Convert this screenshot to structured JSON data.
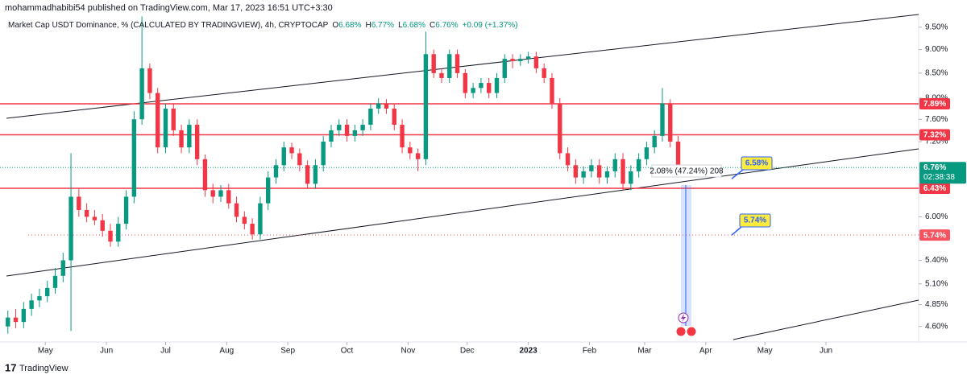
{
  "header": {
    "published": "mohammadhabibi54 published on TradingView.com, Mar 17, 2023 16:51 UTC+3:30",
    "brand": "TradingView"
  },
  "chart_data": {
    "type": "candlestick",
    "title": "Market Cap USDT Dominance, % (CALCULATED BY TRADINGVIEW), 4h, CRYPTOCAP",
    "ohlc_legend": [
      {
        "label": "O",
        "value": "6.68%"
      },
      {
        "label": "H",
        "value": "6.77%"
      },
      {
        "label": "L",
        "value": "6.68%"
      },
      {
        "label": "C",
        "value": "6.76%"
      }
    ],
    "change": "+0.09 (+1.37%)",
    "log_scale": true,
    "grid": false,
    "up_color": "#089981",
    "down_color": "#f23645",
    "xlim": [
      0,
      466
    ],
    "ylim": [
      4.43,
      9.76
    ],
    "xticks": [
      {
        "value": 23,
        "label": "May"
      },
      {
        "value": 54,
        "label": "Jun"
      },
      {
        "value": 84,
        "label": "Jul"
      },
      {
        "value": 115,
        "label": "Aug"
      },
      {
        "value": 146,
        "label": "Sep"
      },
      {
        "value": 176,
        "label": "Oct"
      },
      {
        "value": 207,
        "label": "Nov"
      },
      {
        "value": 237,
        "label": "Dec"
      },
      {
        "value": 268,
        "label": "2023"
      },
      {
        "value": 299,
        "label": "Feb"
      },
      {
        "value": 327,
        "label": "Mar"
      },
      {
        "value": 358,
        "label": "Apr"
      },
      {
        "value": 388,
        "label": "May"
      },
      {
        "value": 419,
        "label": "Jun"
      }
    ],
    "yticks": [
      {
        "value": 9.5,
        "label": "9.50%"
      },
      {
        "value": 9,
        "label": "9.00%"
      },
      {
        "value": 8.5,
        "label": "8.50%"
      },
      {
        "value": 8,
        "label": "8.00%"
      },
      {
        "value": 7.6,
        "label": "7.60%"
      },
      {
        "value": 7.2,
        "label": "7.20%"
      },
      {
        "value": 6,
        "label": "6.00%"
      },
      {
        "value": 5.4,
        "label": "5.40%"
      },
      {
        "value": 5.1,
        "label": "5.10%"
      },
      {
        "value": 4.85,
        "label": "4.85%"
      },
      {
        "value": 4.6,
        "label": "4.60%"
      }
    ],
    "x": [
      4,
      8,
      12,
      16,
      20,
      24,
      28,
      32,
      36,
      40,
      44,
      48,
      52,
      56,
      60,
      64,
      68,
      72,
      76,
      80,
      84,
      88,
      92,
      96,
      100,
      104,
      108,
      112,
      116,
      120,
      124,
      128,
      132,
      136,
      140,
      144,
      148,
      152,
      156,
      160,
      164,
      168,
      172,
      176,
      180,
      184,
      188,
      192,
      196,
      200,
      204,
      208,
      212,
      216,
      220,
      224,
      228,
      232,
      236,
      240,
      244,
      248,
      252,
      256,
      260,
      264,
      268,
      272,
      276,
      280,
      284,
      288,
      292,
      296,
      300,
      304,
      308,
      312,
      316,
      320,
      324,
      328,
      332,
      336,
      340,
      344
    ],
    "open": [
      4.6,
      4.7,
      4.65,
      4.8,
      4.9,
      4.95,
      5.05,
      5.2,
      5.4,
      6.3,
      6.1,
      6.0,
      5.95,
      5.8,
      5.65,
      5.9,
      6.3,
      7.6,
      8.6,
      8.1,
      7.1,
      7.8,
      7.4,
      7.1,
      7.5,
      6.9,
      6.4,
      6.3,
      6.4,
      6.2,
      6.0,
      5.9,
      5.75,
      6.2,
      6.6,
      6.8,
      7.1,
      7.0,
      6.8,
      6.5,
      6.8,
      7.2,
      7.4,
      7.5,
      7.3,
      7.4,
      7.5,
      7.8,
      7.9,
      7.8,
      7.5,
      7.1,
      7.0,
      6.9,
      8.9,
      8.5,
      8.4,
      8.9,
      8.5,
      8.1,
      8.2,
      8.3,
      8.1,
      8.4,
      8.8,
      8.75,
      8.8,
      8.85,
      8.6,
      8.4,
      7.9,
      7.0,
      6.8,
      6.6,
      6.7,
      6.8,
      6.6,
      6.7,
      6.9,
      6.5,
      6.7,
      6.9,
      7.1,
      7.3,
      7.9,
      7.2
    ],
    "high": [
      4.78,
      4.8,
      4.88,
      4.98,
      5.04,
      5.14,
      5.3,
      5.5,
      7.0,
      6.42,
      6.2,
      6.1,
      6.04,
      5.9,
      6.0,
      6.4,
      7.75,
      9.75,
      8.7,
      8.2,
      7.9,
      7.9,
      7.5,
      7.6,
      7.6,
      6.98,
      6.5,
      6.48,
      6.5,
      6.3,
      6.08,
      5.98,
      6.3,
      6.7,
      6.9,
      7.2,
      7.18,
      7.08,
      6.88,
      6.9,
      7.3,
      7.5,
      7.6,
      7.6,
      7.5,
      7.6,
      7.9,
      8.0,
      7.98,
      7.88,
      7.6,
      7.2,
      7.08,
      9.4,
      9.0,
      8.6,
      9.0,
      9.0,
      8.58,
      8.3,
      8.4,
      8.4,
      8.5,
      8.9,
      8.9,
      8.9,
      8.95,
      8.95,
      8.7,
      8.5,
      8.0,
      7.1,
      6.9,
      6.78,
      6.9,
      6.9,
      6.78,
      7.0,
      7.0,
      6.8,
      7.0,
      7.2,
      7.4,
      8.2,
      7.98,
      7.3
    ],
    "low": [
      4.52,
      4.58,
      4.58,
      4.72,
      4.82,
      4.88,
      4.98,
      5.12,
      4.55,
      6.0,
      5.92,
      5.88,
      5.72,
      5.58,
      5.58,
      5.82,
      6.2,
      7.5,
      7.98,
      7.0,
      7.0,
      7.3,
      7.0,
      7.0,
      6.8,
      6.3,
      6.2,
      6.22,
      6.12,
      5.92,
      5.82,
      5.68,
      5.68,
      6.1,
      6.5,
      6.7,
      6.9,
      6.7,
      6.42,
      6.42,
      6.7,
      7.1,
      7.3,
      7.2,
      7.2,
      7.3,
      7.4,
      7.7,
      7.7,
      7.4,
      7.0,
      6.9,
      6.7,
      6.8,
      8.4,
      8.3,
      8.3,
      8.4,
      8.0,
      8.0,
      8.1,
      8.0,
      8.0,
      8.3,
      8.6,
      8.65,
      8.7,
      8.5,
      8.3,
      7.8,
      6.9,
      6.7,
      6.5,
      6.5,
      6.6,
      6.5,
      6.5,
      6.6,
      6.4,
      6.4,
      6.6,
      6.8,
      7.0,
      7.2,
      7.1,
      6.6
    ],
    "close": [
      4.7,
      4.65,
      4.8,
      4.9,
      4.95,
      5.05,
      5.2,
      5.4,
      6.3,
      6.1,
      6.0,
      5.95,
      5.8,
      5.65,
      5.9,
      6.3,
      7.6,
      8.6,
      8.1,
      7.1,
      7.8,
      7.4,
      7.1,
      7.5,
      6.9,
      6.4,
      6.3,
      6.4,
      6.2,
      6.0,
      5.9,
      5.75,
      6.2,
      6.6,
      6.8,
      7.1,
      7.0,
      6.8,
      6.5,
      6.8,
      7.2,
      7.4,
      7.5,
      7.3,
      7.4,
      7.5,
      7.8,
      7.9,
      7.8,
      7.5,
      7.1,
      7.0,
      6.9,
      8.9,
      8.5,
      8.4,
      8.9,
      8.5,
      8.1,
      8.2,
      8.3,
      8.1,
      8.4,
      8.8,
      8.75,
      8.8,
      8.85,
      8.6,
      8.4,
      7.9,
      7.0,
      6.8,
      6.6,
      6.7,
      6.8,
      6.6,
      6.7,
      6.9,
      6.5,
      6.7,
      6.9,
      7.1,
      7.3,
      7.9,
      7.2,
      6.76
    ],
    "levels": [
      {
        "value": 7.89,
        "label": "7.89%",
        "color": "#f23645",
        "style": "solid"
      },
      {
        "value": 7.32,
        "label": "7.32%",
        "color": "#f23645",
        "style": "solid"
      },
      {
        "value": 6.43,
        "label": "6.43%",
        "color": "#f23645",
        "style": "solid"
      },
      {
        "value": 5.74,
        "label": "5.74%",
        "color": "#f7525f",
        "style": "dotted"
      }
    ],
    "current_price": {
      "value": 6.76,
      "label": "6.76%",
      "countdown": "02:38:38",
      "color": "#089981"
    },
    "callouts": [
      {
        "value": 6.58,
        "label": "6.58%"
      },
      {
        "value": 5.74,
        "label": "5.74%"
      }
    ],
    "measure_label": "2.08% (47.24%) 208"
  }
}
